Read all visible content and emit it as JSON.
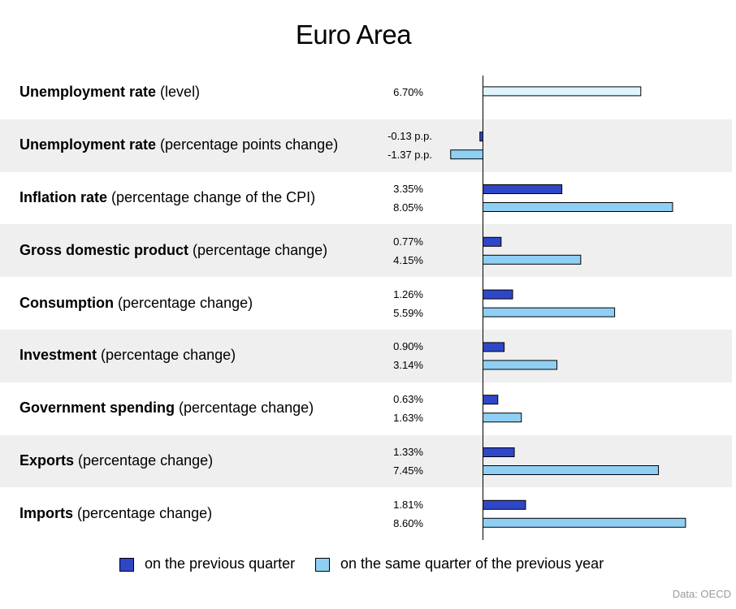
{
  "title": "Euro Area",
  "source": "Data: OECD",
  "colors": {
    "previous_quarter": "#3046c9",
    "previous_year": "#8fcff3",
    "single_level": "#dff4fc",
    "band": "#efefef"
  },
  "legend": {
    "previous_quarter": "on the previous quarter",
    "previous_year": "on the same quarter of the previous year"
  },
  "rows": [
    {
      "bold": "Unemployment rate",
      "rest": " (level)",
      "labels": [
        "6.70%"
      ]
    },
    {
      "bold": "Unemployment rate",
      "rest": " (percentage points change)",
      "labels": [
        "-0.13 p.p.",
        "-1.37 p.p."
      ]
    },
    {
      "bold": "Inflation rate",
      "rest": " (percentage change of the CPI)",
      "labels": [
        "3.35%",
        "8.05%"
      ]
    },
    {
      "bold": "Gross domestic product",
      "rest": " (percentage change)",
      "labels": [
        "0.77%",
        "4.15%"
      ]
    },
    {
      "bold": "Consumption",
      "rest": " (percentage change)",
      "labels": [
        "1.26%",
        "5.59%"
      ]
    },
    {
      "bold": "Investment",
      "rest": " (percentage change)",
      "labels": [
        "0.90%",
        "3.14%"
      ]
    },
    {
      "bold": "Government spending",
      "rest": " (percentage change)",
      "labels": [
        "0.63%",
        "1.63%"
      ]
    },
    {
      "bold": "Exports",
      "rest": " (percentage change)",
      "labels": [
        "1.33%",
        "7.45%"
      ]
    },
    {
      "bold": "Imports",
      "rest": " (percentage change)",
      "labels": [
        "1.81%",
        "8.60%"
      ]
    }
  ],
  "chart_data": {
    "type": "bar",
    "orientation": "horizontal",
    "title": "Euro Area",
    "categories": [
      "Unemployment rate (level)",
      "Unemployment rate (percentage points change)",
      "Inflation rate (percentage change of the CPI)",
      "Gross domestic product (percentage change)",
      "Consumption (percentage change)",
      "Investment (percentage change)",
      "Government spending (percentage change)",
      "Exports (percentage change)",
      "Imports (percentage change)"
    ],
    "series": [
      {
        "name": "on the previous quarter",
        "values": [
          null,
          -0.13,
          3.35,
          0.77,
          1.26,
          0.9,
          0.63,
          1.33,
          1.81
        ]
      },
      {
        "name": "on the same quarter of the previous year",
        "values": [
          6.7,
          -1.37,
          8.05,
          4.15,
          5.59,
          3.14,
          1.63,
          7.45,
          8.6
        ]
      }
    ],
    "legend_position": "bottom",
    "grid": false
  }
}
